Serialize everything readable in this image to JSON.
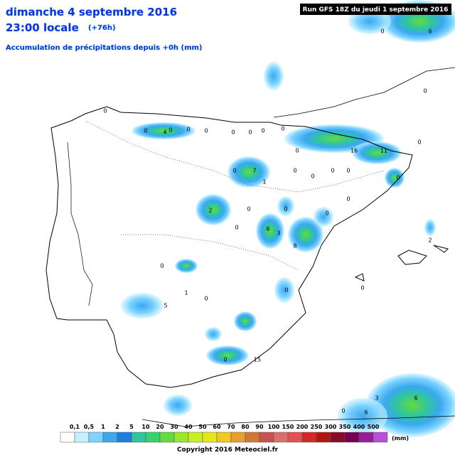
{
  "header": {
    "date": "dimanche 4 septembre 2016",
    "time": "23:00 locale",
    "lead": "(+76h)",
    "subtitle": "Accumulation de précipitations depuis +0h (mm)",
    "run": "Run GFS 18Z du jeudi 1 septembre 2016"
  },
  "map_labels": [
    "0",
    "0",
    "0",
    "0",
    "4",
    "0",
    "0",
    "0",
    "0",
    "0",
    "16",
    "11",
    "0",
    "0",
    "0",
    "7",
    "0",
    "1",
    "0",
    "2",
    "0",
    "6",
    "3",
    "8",
    "0",
    "0",
    "0",
    "0",
    "0",
    "0",
    "0",
    "6",
    "0",
    "0",
    "0",
    "5",
    "1",
    "0",
    "15",
    "0",
    "6",
    "0",
    "2",
    "0",
    "3",
    "6",
    "0"
  ],
  "legend": {
    "labels": [
      "0,1",
      "0,5",
      "1",
      "2",
      "5",
      "10",
      "20",
      "30",
      "40",
      "50",
      "60",
      "70",
      "80",
      "90",
      "100",
      "150",
      "200",
      "250",
      "300",
      "350",
      "400",
      "500"
    ],
    "unit": "(mm)",
    "colors": [
      "#ffffff",
      "#c6f0ff",
      "#7fd4ff",
      "#3aa8f0",
      "#1f7fe0",
      "#2fc4a0",
      "#32d26e",
      "#64dc3c",
      "#9be628",
      "#c8f01e",
      "#e6e61e",
      "#f0c81e",
      "#e6a028",
      "#d27837",
      "#c85050",
      "#dc6e6e",
      "#e65050",
      "#d22828",
      "#b41414",
      "#8c0a28",
      "#780050",
      "#961e96",
      "#b450dc"
    ]
  },
  "footer": "Copyright 2016 Meteociel.fr"
}
